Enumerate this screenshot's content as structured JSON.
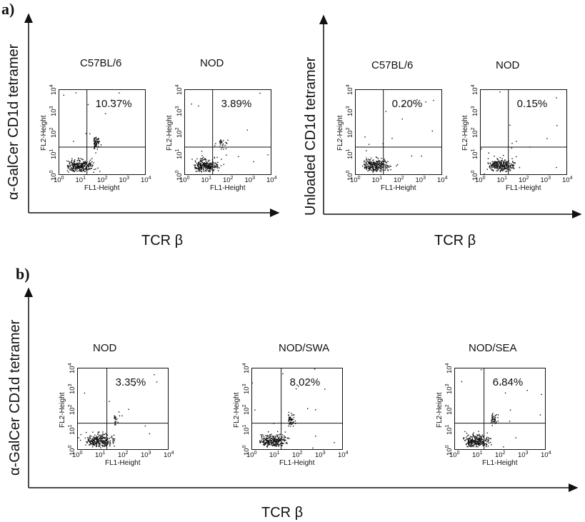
{
  "section_a": {
    "letter": "a)",
    "y_label_left": "α-GalCer CD1d tetramer",
    "y_label_right": "Unloaded CD1d tetramer",
    "x_label_left": "TCR β",
    "x_label_right": "TCR β",
    "plots": [
      {
        "condition": "C57BL/6",
        "percent": "10.37%"
      },
      {
        "condition": "NOD",
        "percent": "3.89%"
      },
      {
        "condition": "C57BL/6",
        "percent": "0.20%"
      },
      {
        "condition": "NOD",
        "percent": "0.15%"
      }
    ]
  },
  "section_b": {
    "letter": "b)",
    "y_label": "α-GalCer CD1d tetramer",
    "x_label": "TCR β",
    "plots": [
      {
        "condition": "NOD",
        "percent": "3.35%"
      },
      {
        "condition": "NOD/SWA",
        "percent": "8.02%"
      },
      {
        "condition": "NOD/SEA",
        "percent": "6.84%"
      }
    ]
  },
  "plot_axes": {
    "x_title": "FL1-Height",
    "y_title": "FL2-Height",
    "tick_base": "10",
    "tick_exponents": [
      "0",
      "1",
      "2",
      "3",
      "4"
    ]
  },
  "chart_data": [
    {
      "type": "scatter",
      "title": "C57BL/6",
      "xlabel": "FL1-Height",
      "ylabel": "FL2-Height",
      "xscale": "log",
      "yscale": "log",
      "xlim": [
        1,
        10000
      ],
      "ylim": [
        1,
        10000
      ],
      "gate_x": 20,
      "gate_y": 20,
      "upper_right_percent": 10.37
    },
    {
      "type": "scatter",
      "title": "NOD",
      "xlabel": "FL1-Height",
      "ylabel": "FL2-Height",
      "xscale": "log",
      "yscale": "log",
      "xlim": [
        1,
        10000
      ],
      "ylim": [
        1,
        10000
      ],
      "gate_x": 20,
      "gate_y": 20,
      "upper_right_percent": 3.89
    },
    {
      "type": "scatter",
      "title": "C57BL/6",
      "xlabel": "FL1-Height",
      "ylabel": "FL2-Height",
      "xscale": "log",
      "yscale": "log",
      "xlim": [
        1,
        10000
      ],
      "ylim": [
        1,
        10000
      ],
      "gate_x": 20,
      "gate_y": 20,
      "upper_right_percent": 0.2
    },
    {
      "type": "scatter",
      "title": "NOD",
      "xlabel": "FL1-Height",
      "ylabel": "FL2-Height",
      "xscale": "log",
      "yscale": "log",
      "xlim": [
        1,
        10000
      ],
      "ylim": [
        1,
        10000
      ],
      "gate_x": 20,
      "gate_y": 20,
      "upper_right_percent": 0.15
    },
    {
      "type": "scatter",
      "title": "NOD",
      "xlabel": "FL1-Height",
      "ylabel": "FL2-Height",
      "xscale": "log",
      "yscale": "log",
      "xlim": [
        1,
        10000
      ],
      "ylim": [
        1,
        10000
      ],
      "gate_x": 20,
      "gate_y": 20,
      "upper_right_percent": 3.35
    },
    {
      "type": "scatter",
      "title": "NOD/SWA",
      "xlabel": "FL1-Height",
      "ylabel": "FL2-Height",
      "xscale": "log",
      "yscale": "log",
      "xlim": [
        1,
        10000
      ],
      "ylim": [
        1,
        10000
      ],
      "gate_x": 20,
      "gate_y": 20,
      "upper_right_percent": 8.02
    },
    {
      "type": "scatter",
      "title": "NOD/SEA",
      "xlabel": "FL1-Height",
      "ylabel": "FL2-Height",
      "xscale": "log",
      "yscale": "log",
      "xlim": [
        1,
        10000
      ],
      "ylim": [
        1,
        10000
      ],
      "gate_x": 20,
      "gate_y": 20,
      "upper_right_percent": 6.84
    }
  ]
}
